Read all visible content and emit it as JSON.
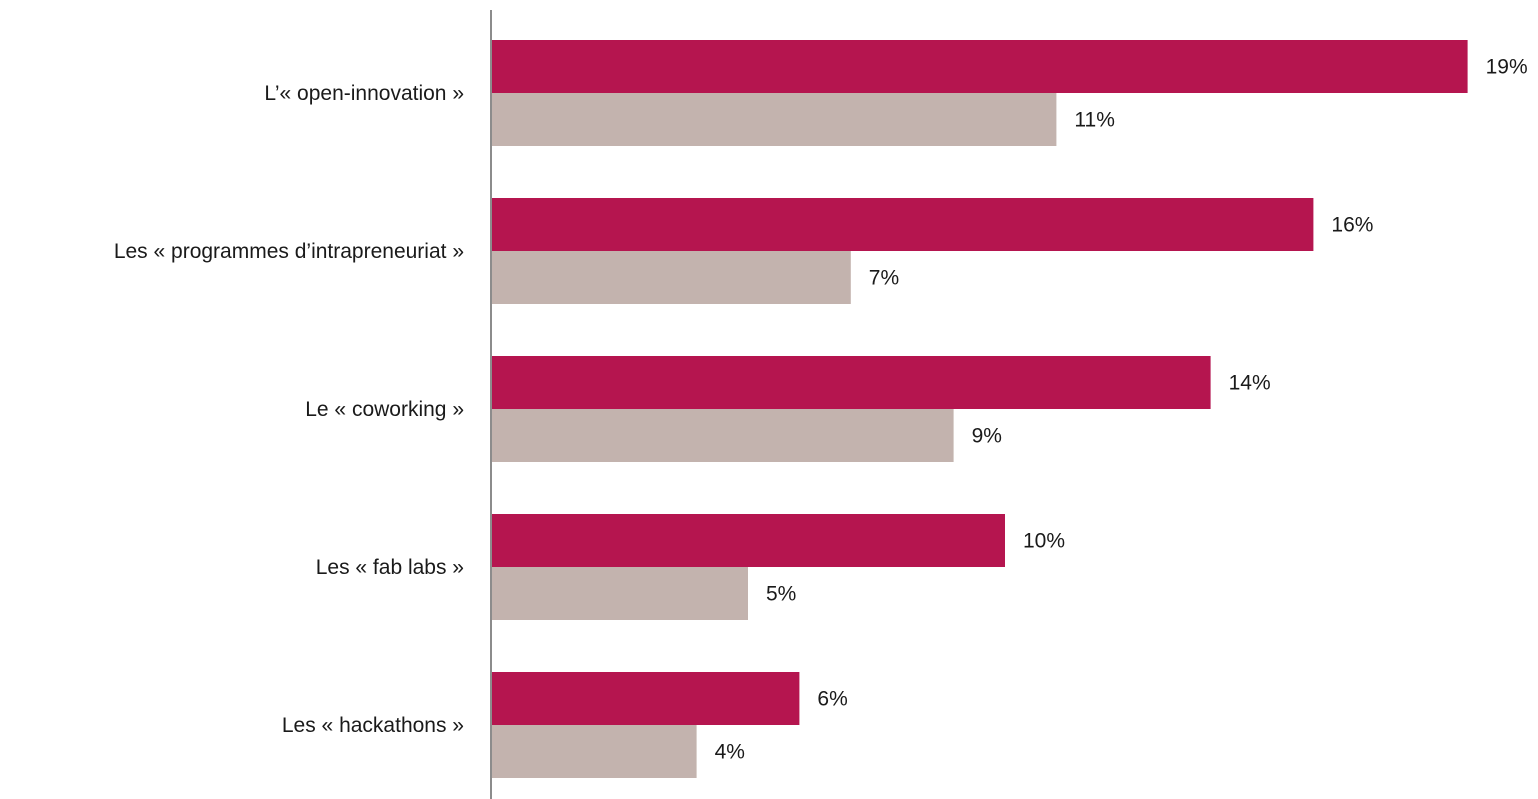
{
  "chart_data": {
    "type": "bar",
    "orientation": "horizontal",
    "categories": [
      "L’« open-innovation »",
      "Les « programmes d’intrapreneuriat »",
      "Le « coworking »",
      "Les « fab labs »",
      "Les « hackathons »"
    ],
    "series": [
      {
        "values": [
          19,
          16,
          14,
          10,
          6
        ],
        "labels": [
          "19%",
          "16%",
          "14%",
          "10%",
          "6%"
        ],
        "color": "#b5154f"
      },
      {
        "values": [
          11,
          7,
          9,
          5,
          4
        ],
        "labels": [
          "11%",
          "7%",
          "9%",
          "5%",
          "4%"
        ],
        "color": "#c3b3ae"
      }
    ],
    "value_unit": "%",
    "xlim": [
      0,
      20
    ],
    "grid": false,
    "axis_color": "#8c8c8c"
  }
}
